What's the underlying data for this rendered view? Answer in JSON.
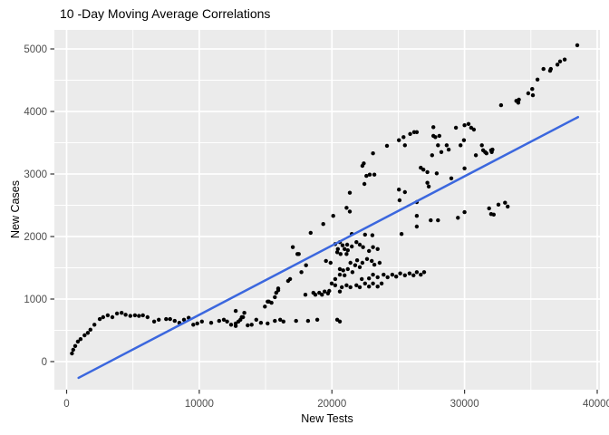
{
  "chart_data": {
    "type": "scatter",
    "title": "10 -Day Moving Average Correlations",
    "xlabel": "New Tests",
    "ylabel": "New Cases",
    "x_tick_values": [
      0,
      10000,
      20000,
      30000,
      40000
    ],
    "x_tick_labels": [
      "0",
      "10000",
      "20000",
      "30000",
      "40000"
    ],
    "y_tick_values": [
      0,
      1000,
      2000,
      3000,
      4000,
      5000
    ],
    "y_tick_labels": [
      "0",
      "1000",
      "2000",
      "3000",
      "4000",
      "5000"
    ],
    "xlim": [
      -950,
      40200
    ],
    "ylim": [
      -450,
      5300
    ],
    "grid": "white major and minor gridlines on grey panel",
    "legend_position": "none",
    "colors": {
      "panel_bg": "#EBEBEB",
      "grid": "#FFFFFF",
      "points": "#000000",
      "trend_line": "#3B67DE",
      "tick_labels": "#4D4D4D",
      "tick_marks": "#333333"
    },
    "trend_line": {
      "x1": 900,
      "y1": -260,
      "x2": 38550,
      "y2": 3910
    },
    "points": [
      [
        400,
        130
      ],
      [
        500,
        190
      ],
      [
        650,
        250
      ],
      [
        850,
        320
      ],
      [
        1050,
        360
      ],
      [
        1350,
        420
      ],
      [
        1600,
        460
      ],
      [
        1800,
        510
      ],
      [
        2100,
        590
      ],
      [
        2500,
        680
      ],
      [
        2750,
        710
      ],
      [
        3100,
        740
      ],
      [
        3450,
        710
      ],
      [
        3800,
        770
      ],
      [
        4150,
        780
      ],
      [
        4450,
        750
      ],
      [
        4800,
        730
      ],
      [
        5150,
        740
      ],
      [
        5450,
        730
      ],
      [
        5750,
        740
      ],
      [
        6100,
        710
      ],
      [
        6600,
        640
      ],
      [
        6950,
        670
      ],
      [
        7500,
        680
      ],
      [
        7800,
        680
      ],
      [
        8150,
        650
      ],
      [
        8500,
        620
      ],
      [
        8850,
        670
      ],
      [
        9200,
        700
      ],
      [
        9550,
        590
      ],
      [
        9850,
        610
      ],
      [
        10200,
        640
      ],
      [
        10900,
        620
      ],
      [
        11500,
        650
      ],
      [
        11850,
        670
      ],
      [
        12100,
        640
      ],
      [
        12400,
        590
      ],
      [
        12750,
        570
      ],
      [
        13100,
        670
      ],
      [
        13200,
        710
      ],
      [
        12750,
        610
      ],
      [
        12950,
        640
      ],
      [
        13300,
        710
      ],
      [
        13650,
        580
      ],
      [
        13950,
        590
      ],
      [
        14300,
        670
      ],
      [
        14650,
        620
      ],
      [
        15150,
        610
      ],
      [
        15700,
        650
      ],
      [
        16100,
        670
      ],
      [
        16350,
        640
      ],
      [
        17300,
        650
      ],
      [
        18200,
        650
      ],
      [
        18900,
        670
      ],
      [
        20400,
        670
      ],
      [
        20600,
        640
      ],
      [
        14950,
        880
      ],
      [
        15250,
        960
      ],
      [
        15450,
        940
      ],
      [
        15800,
        1100
      ],
      [
        15950,
        1140
      ],
      [
        18000,
        1070
      ],
      [
        18600,
        1100
      ],
      [
        18750,
        1070
      ],
      [
        19050,
        1100
      ],
      [
        19250,
        1070
      ],
      [
        19450,
        1120
      ],
      [
        19700,
        1090
      ],
      [
        19800,
        1130
      ],
      [
        20600,
        1120
      ],
      [
        17050,
        1830
      ],
      [
        17400,
        1720
      ],
      [
        16700,
        1290
      ],
      [
        15950,
        1170
      ],
      [
        15700,
        1030
      ],
      [
        15150,
        960
      ],
      [
        12750,
        810
      ],
      [
        13400,
        780
      ],
      [
        22300,
        3130
      ],
      [
        22600,
        2970
      ],
      [
        22850,
        2990
      ],
      [
        23200,
        2990
      ],
      [
        22450,
        2840
      ],
      [
        25050,
        2750
      ],
      [
        25500,
        2710
      ],
      [
        25100,
        2580
      ],
      [
        26700,
        3100
      ],
      [
        26900,
        3070
      ],
      [
        21350,
        2700
      ],
      [
        21100,
        2460
      ],
      [
        21350,
        2400
      ],
      [
        20100,
        2330
      ],
      [
        19350,
        2200
      ],
      [
        18400,
        2060
      ],
      [
        17500,
        1720
      ],
      [
        18050,
        1540
      ],
      [
        17700,
        1430
      ],
      [
        16850,
        1320
      ],
      [
        21500,
        2040
      ],
      [
        22500,
        2030
      ],
      [
        23050,
        2020
      ],
      [
        25250,
        2040
      ],
      [
        20250,
        1880
      ],
      [
        20600,
        1910
      ],
      [
        20450,
        1800
      ],
      [
        20800,
        1860
      ],
      [
        21150,
        1870
      ],
      [
        20950,
        1800
      ],
      [
        21200,
        1780
      ],
      [
        21500,
        1840
      ],
      [
        21850,
        1910
      ],
      [
        22100,
        1870
      ],
      [
        22350,
        1830
      ],
      [
        20400,
        1750
      ],
      [
        20650,
        1720
      ],
      [
        21100,
        1720
      ],
      [
        22800,
        1770
      ],
      [
        23100,
        1830
      ],
      [
        23450,
        1800
      ],
      [
        21900,
        1620
      ],
      [
        22300,
        1580
      ],
      [
        22650,
        1640
      ],
      [
        23000,
        1610
      ],
      [
        23200,
        1550
      ],
      [
        23600,
        1580
      ],
      [
        21400,
        1580
      ],
      [
        21750,
        1540
      ],
      [
        22100,
        1510
      ],
      [
        19550,
        1610
      ],
      [
        19900,
        1580
      ],
      [
        20600,
        1480
      ],
      [
        20850,
        1460
      ],
      [
        21200,
        1480
      ],
      [
        21550,
        1430
      ],
      [
        20600,
        1390
      ],
      [
        20950,
        1380
      ],
      [
        20250,
        1320
      ],
      [
        19980,
        1250
      ],
      [
        20250,
        1220
      ],
      [
        20750,
        1190
      ],
      [
        21100,
        1220
      ],
      [
        21400,
        1190
      ],
      [
        21850,
        1220
      ],
      [
        22100,
        1190
      ],
      [
        22500,
        1250
      ],
      [
        22800,
        1200
      ],
      [
        23100,
        1250
      ],
      [
        23450,
        1200
      ],
      [
        23750,
        1250
      ],
      [
        22250,
        1320
      ],
      [
        22800,
        1330
      ],
      [
        23100,
        1390
      ],
      [
        23450,
        1350
      ],
      [
        23900,
        1390
      ],
      [
        24200,
        1350
      ],
      [
        24550,
        1390
      ],
      [
        24850,
        1360
      ],
      [
        25150,
        1410
      ],
      [
        25500,
        1380
      ],
      [
        25850,
        1410
      ],
      [
        26150,
        1380
      ],
      [
        26400,
        1430
      ],
      [
        26700,
        1390
      ],
      [
        26950,
        1430
      ],
      [
        27200,
        3030
      ],
      [
        27900,
        3010
      ],
      [
        30000,
        3090
      ],
      [
        27200,
        2860
      ],
      [
        27300,
        2800
      ],
      [
        29000,
        2930
      ],
      [
        26400,
        2550
      ],
      [
        26400,
        2330
      ],
      [
        26400,
        2160
      ],
      [
        27450,
        2260
      ],
      [
        28000,
        2260
      ],
      [
        29500,
        2300
      ],
      [
        30000,
        2390
      ],
      [
        31850,
        2450
      ],
      [
        32000,
        2360
      ],
      [
        32200,
        2350
      ],
      [
        32550,
        2510
      ],
      [
        33050,
        2540
      ],
      [
        33250,
        2480
      ],
      [
        22400,
        3170
      ],
      [
        23100,
        3330
      ],
      [
        24150,
        3450
      ],
      [
        25050,
        3540
      ],
      [
        25400,
        3590
      ],
      [
        25500,
        3460
      ],
      [
        25900,
        3640
      ],
      [
        26200,
        3670
      ],
      [
        26400,
        3670
      ],
      [
        27550,
        3300
      ],
      [
        27650,
        3750
      ],
      [
        27650,
        3610
      ],
      [
        27800,
        3590
      ],
      [
        28100,
        3610
      ],
      [
        28000,
        3460
      ],
      [
        28250,
        3350
      ],
      [
        28650,
        3460
      ],
      [
        28800,
        3390
      ],
      [
        29350,
        3740
      ],
      [
        29700,
        3460
      ],
      [
        29950,
        3540
      ],
      [
        30000,
        3780
      ],
      [
        30300,
        3800
      ],
      [
        30500,
        3740
      ],
      [
        30700,
        3710
      ],
      [
        30850,
        3300
      ],
      [
        31300,
        3460
      ],
      [
        31400,
        3380
      ],
      [
        31550,
        3350
      ],
      [
        31650,
        3330
      ],
      [
        32000,
        3380
      ],
      [
        32100,
        3390
      ],
      [
        38500,
        5060
      ],
      [
        37550,
        4830
      ],
      [
        37200,
        4800
      ],
      [
        37000,
        4750
      ],
      [
        35950,
        4680
      ],
      [
        36500,
        4680
      ],
      [
        36450,
        4650
      ],
      [
        35500,
        4510
      ],
      [
        35100,
        4360
      ],
      [
        35150,
        4260
      ],
      [
        34800,
        4290
      ],
      [
        34100,
        4190
      ],
      [
        34050,
        4140
      ],
      [
        33900,
        4170
      ],
      [
        32750,
        4100
      ],
      [
        32050,
        3350
      ]
    ]
  }
}
